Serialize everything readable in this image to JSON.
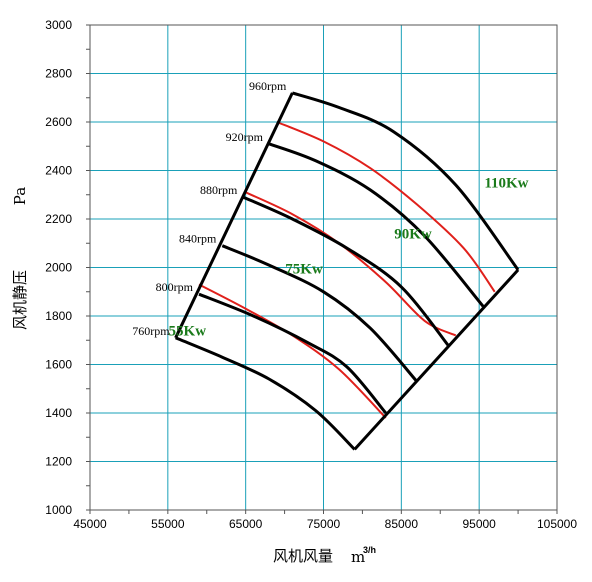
{
  "chart_data": {
    "type": "line",
    "title": "",
    "xlabel": "风机风量",
    "xlabel_unit": "m",
    "xlabel_unit_sup": "3/h",
    "ylabel": "风机静压",
    "ylabel_unit": "Pa",
    "xlim": [
      45000,
      105000
    ],
    "ylim": [
      1000,
      3000
    ],
    "x_ticks": [
      45000,
      55000,
      65000,
      75000,
      85000,
      95000,
      105000
    ],
    "x_tick_labels": [
      "45000",
      "55000",
      "65000",
      "75000",
      "85000",
      "95000",
      "105000"
    ],
    "y_ticks": [
      1000,
      1200,
      1400,
      1600,
      1800,
      2000,
      2200,
      2400,
      2600,
      2800,
      3000
    ],
    "y_tick_labels": [
      "1000",
      "1200",
      "1400",
      "1600",
      "1800",
      "2000",
      "2200",
      "2400",
      "2600",
      "2800",
      "3000"
    ],
    "grid": true,
    "colors": {
      "rpm_curve": "#000000",
      "power_curve": "#e0201b",
      "power_label": "#1a7a1a",
      "grid": "#1aa0b8"
    },
    "rpm_curves": [
      {
        "label": "760rpm",
        "points": [
          [
            56000,
            1710
          ],
          [
            62000,
            1630
          ],
          [
            68000,
            1540
          ],
          [
            74000,
            1410
          ],
          [
            79000,
            1250
          ]
        ]
      },
      {
        "label": "800rpm",
        "points": [
          [
            59000,
            1890
          ],
          [
            66000,
            1800
          ],
          [
            73000,
            1690
          ],
          [
            78000,
            1590
          ],
          [
            83000,
            1400
          ]
        ]
      },
      {
        "label": "840rpm",
        "points": [
          [
            62000,
            2090
          ],
          [
            68000,
            2010
          ],
          [
            75000,
            1900
          ],
          [
            81000,
            1750
          ],
          [
            87000,
            1530
          ]
        ]
      },
      {
        "label": "880rpm",
        "points": [
          [
            64700,
            2290
          ],
          [
            71000,
            2200
          ],
          [
            78000,
            2080
          ],
          [
            85000,
            1920
          ],
          [
            91000,
            1680
          ]
        ]
      },
      {
        "label": "920rpm",
        "points": [
          [
            68000,
            2510
          ],
          [
            74000,
            2440
          ],
          [
            81000,
            2320
          ],
          [
            88000,
            2130
          ],
          [
            95500,
            1840
          ]
        ]
      },
      {
        "label": "960rpm",
        "points": [
          [
            71000,
            2720
          ],
          [
            77000,
            2660
          ],
          [
            84000,
            2560
          ],
          [
            92000,
            2340
          ],
          [
            100000,
            1990
          ]
        ]
      }
    ],
    "power_curves": [
      {
        "label": "55Kw",
        "points": [
          [
            59000,
            1930
          ],
          [
            65000,
            1830
          ],
          [
            71000,
            1720
          ],
          [
            77000,
            1580
          ],
          [
            83000,
            1380
          ]
        ]
      },
      {
        "label": "75Kw",
        "points": [
          [
            65000,
            2310
          ],
          [
            71000,
            2220
          ],
          [
            77000,
            2100
          ],
          [
            83000,
            1940
          ],
          [
            88000,
            1780
          ],
          [
            92000,
            1720
          ]
        ]
      },
      {
        "label": "90Kw",
        "points": [
          [
            69000,
            2600
          ],
          [
            75000,
            2520
          ],
          [
            81000,
            2410
          ],
          [
            87000,
            2260
          ],
          [
            93000,
            2080
          ],
          [
            97000,
            1900
          ]
        ]
      },
      {
        "label": "110Kw",
        "points": []
      }
    ],
    "power_label_positions": [
      {
        "label": "55Kw",
        "x": 57500,
        "y": 1720
      },
      {
        "label": "75Kw",
        "x": 72500,
        "y": 1975
      },
      {
        "label": "90Kw",
        "x": 86500,
        "y": 2120
      },
      {
        "label": "110Kw",
        "x": 98500,
        "y": 2330
      }
    ],
    "boundary": {
      "left": [
        [
          56000,
          1710
        ],
        [
          71000,
          2720
        ]
      ],
      "right": [
        [
          79000,
          1250
        ],
        [
          100000,
          1990
        ]
      ]
    }
  }
}
